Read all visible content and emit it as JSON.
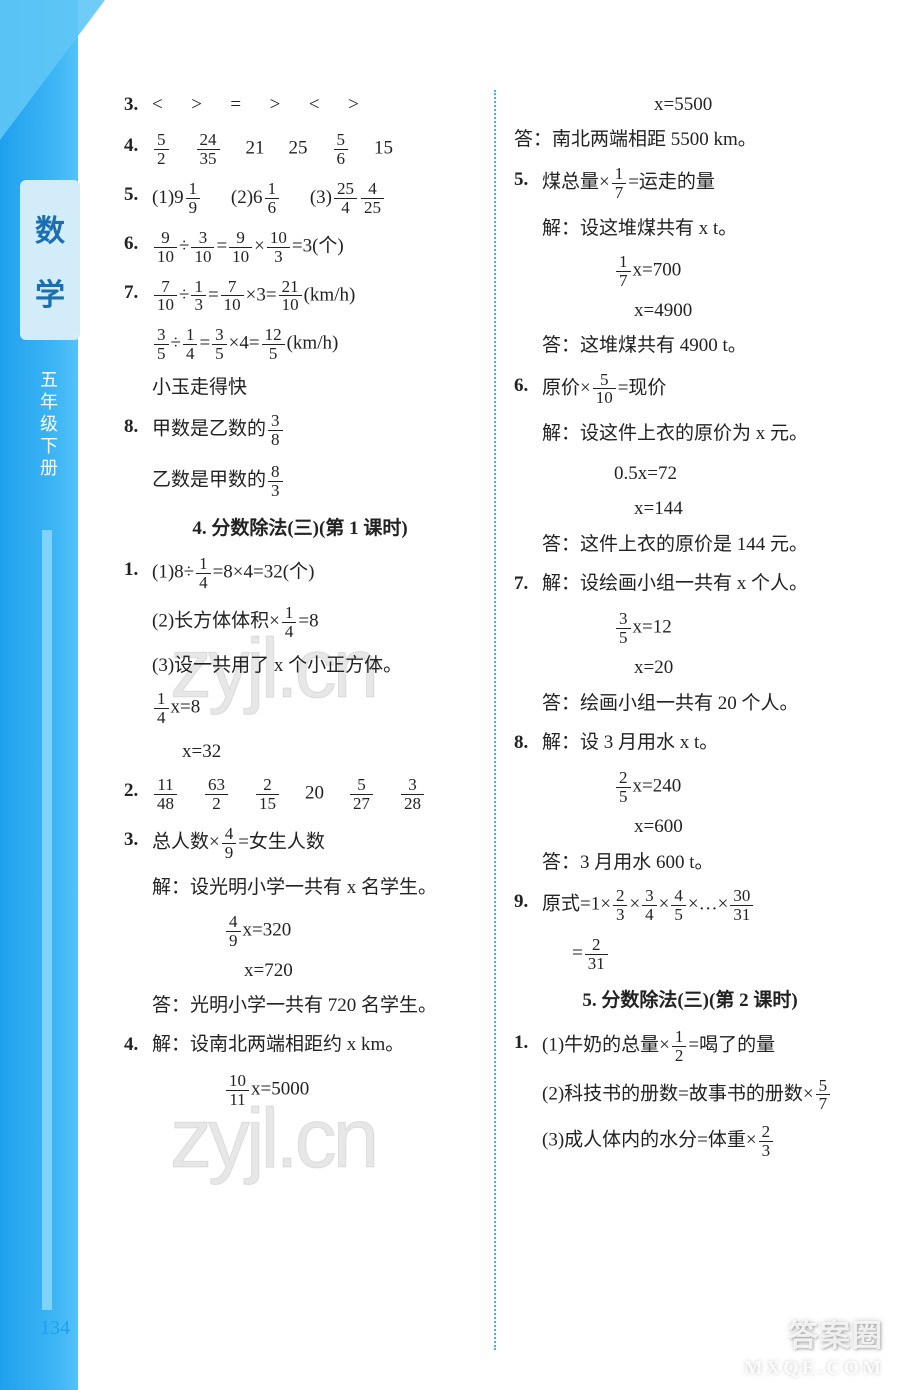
{
  "spine": {
    "subject_chars": [
      "数",
      "学"
    ],
    "grade": "五年级下册"
  },
  "page_number": "134",
  "watermark": "zyjl.cn",
  "footer": {
    "line1": "答案圈",
    "line2": "MXQE.COM"
  },
  "left": {
    "l3": "<   >   =   >   <   >",
    "l4_parts": [
      {
        "n": "5",
        "d": "2"
      },
      {
        "n": "24",
        "d": "35"
      },
      "21",
      "25",
      {
        "n": "5",
        "d": "6"
      },
      "15"
    ],
    "l5": {
      "a": [
        "(1)9",
        {
          "n": "1",
          "d": "9"
        }
      ],
      "b": [
        "(2)6",
        {
          "n": "1",
          "d": "6"
        }
      ],
      "c": [
        "(3)",
        {
          "n": "25",
          "d": "4"
        },
        {
          "n": "4",
          "d": "25"
        }
      ]
    },
    "l6": {
      "lhs": [
        {
          "n": "9",
          "d": "10"
        },
        "÷",
        {
          "n": "3",
          "d": "10"
        },
        "=",
        {
          "n": "9",
          "d": "10"
        },
        "×",
        {
          "n": "10",
          "d": "3"
        },
        "=3(个)"
      ]
    },
    "l7a": [
      {
        "n": "7",
        "d": "10"
      },
      "÷",
      {
        "n": "1",
        "d": "3"
      },
      "=",
      {
        "n": "7",
        "d": "10"
      },
      "×3=",
      {
        "n": "21",
        "d": "10"
      },
      "(km/h)"
    ],
    "l7b": [
      {
        "n": "3",
        "d": "5"
      },
      "÷",
      {
        "n": "1",
        "d": "4"
      },
      "=",
      {
        "n": "3",
        "d": "5"
      },
      "×4=",
      {
        "n": "12",
        "d": "5"
      },
      "(km/h)"
    ],
    "l7c": "小玉走得快",
    "l8a": [
      "甲数是乙数的",
      {
        "n": "3",
        "d": "8"
      }
    ],
    "l8b": [
      "乙数是甲数的",
      {
        "n": "8",
        "d": "3"
      }
    ],
    "section_a": "4. 分数除法(三)(第 1 课时)",
    "q1_1": [
      "(1)8÷",
      {
        "n": "1",
        "d": "4"
      },
      "=8×4=32(个)"
    ],
    "q1_2": [
      "(2)长方体体积×",
      {
        "n": "1",
        "d": "4"
      },
      "=8"
    ],
    "q1_3": "(3)设一共用了 x 个小正方体。",
    "q1_eq1": [
      {
        "n": "1",
        "d": "4"
      },
      "x=8"
    ],
    "q1_eq2": "x=32",
    "q2": [
      {
        "n": "11",
        "d": "48"
      },
      {
        "n": "63",
        "d": "2"
      },
      {
        "n": "2",
        "d": "15"
      },
      "20",
      {
        "n": "5",
        "d": "27"
      },
      {
        "n": "3",
        "d": "28"
      }
    ],
    "q3a": [
      "总人数×",
      {
        "n": "4",
        "d": "9"
      },
      "=女生人数"
    ],
    "q3b": "解：设光明小学一共有 x 名学生。",
    "q3eq1": [
      {
        "n": "4",
        "d": "9"
      },
      "x=320"
    ],
    "q3eq2": "x=720",
    "q3ans": "答：光明小学一共有 720 名学生。",
    "q4a": "解：设南北两端相距约 x km。",
    "q4eq": [
      {
        "n": "10",
        "d": "11"
      },
      "x=5000"
    ]
  },
  "right": {
    "r_top_eq": "x=5500",
    "r_top_ans": "答：南北两端相距 5500 km。",
    "r5a": [
      "煤总量×",
      {
        "n": "1",
        "d": "7"
      },
      "=运走的量"
    ],
    "r5b": "解：设这堆煤共有 x t。",
    "r5eq1": [
      {
        "n": "1",
        "d": "7"
      },
      "x=700"
    ],
    "r5eq2": "x=4900",
    "r5ans": "答：这堆煤共有 4900 t。",
    "r6a": [
      "原价×",
      {
        "n": "5",
        "d": "10"
      },
      "=现价"
    ],
    "r6b": "解：设这件上衣的原价为 x 元。",
    "r6eq1": "0.5x=72",
    "r6eq2": "x=144",
    "r6ans": "答：这件上衣的原价是 144 元。",
    "r7a": "解：设绘画小组一共有 x 个人。",
    "r7eq1": [
      {
        "n": "3",
        "d": "5"
      },
      "x=12"
    ],
    "r7eq2": "x=20",
    "r7ans": "答：绘画小组一共有 20 个人。",
    "r8a": "解：设 3 月用水 x t。",
    "r8eq1": [
      {
        "n": "2",
        "d": "5"
      },
      "x=240"
    ],
    "r8eq2": "x=600",
    "r8ans": "答：3 月用水 600 t。",
    "r9a": [
      "原式=1×",
      {
        "n": "2",
        "d": "3"
      },
      "×",
      {
        "n": "3",
        "d": "4"
      },
      "×",
      {
        "n": "4",
        "d": "5"
      },
      "×…×",
      {
        "n": "30",
        "d": "31"
      }
    ],
    "r9b": [
      "=",
      {
        "n": "2",
        "d": "31"
      }
    ],
    "section_b": "5. 分数除法(三)(第 2 课时)",
    "s1_1": [
      "(1)牛奶的总量×",
      {
        "n": "1",
        "d": "2"
      },
      "=喝了的量"
    ],
    "s1_2": [
      "(2)科技书的册数=故事书的册数×",
      {
        "n": "5",
        "d": "7"
      }
    ],
    "s1_3": [
      "(3)成人体内的水分=体重×",
      {
        "n": "2",
        "d": "3"
      }
    ]
  }
}
